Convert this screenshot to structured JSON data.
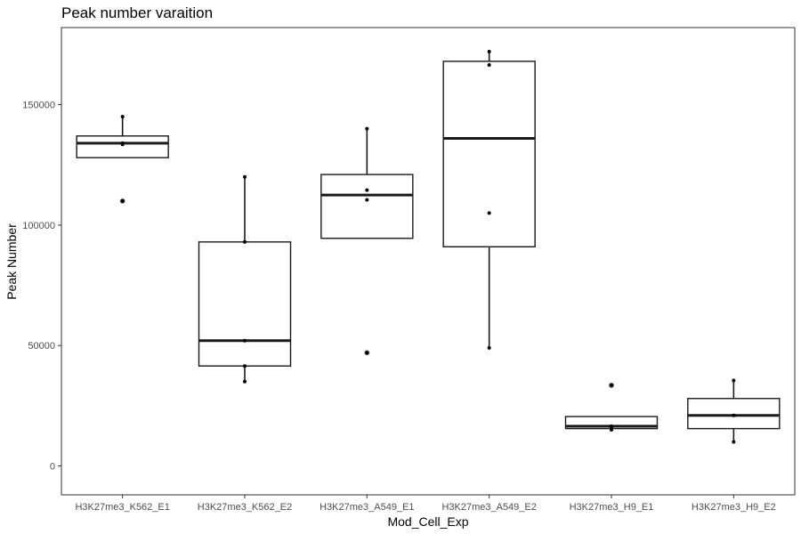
{
  "chart_data": {
    "type": "boxplot",
    "title": "Peak number varaition",
    "xlabel": "Mod_Cell_Exp",
    "ylabel": "Peak Number",
    "ylim": [
      -12000,
      182000
    ],
    "yticks": [
      0,
      50000,
      100000,
      150000
    ],
    "grid": false,
    "categories": [
      "H3K27me3_K562_E1",
      "H3K27me3_K562_E2",
      "H3K27me3_A549_E1",
      "H3K27me3_A549_E2",
      "H3K27me3_H9_E1",
      "H3K27me3_H9_E2"
    ],
    "boxes": [
      {
        "q1": 128000,
        "median": 134000,
        "q3": 137000,
        "whisker_low": 128000,
        "whisker_high": 145000
      },
      {
        "q1": 41500,
        "median": 52000,
        "q3": 93000,
        "whisker_low": 35000,
        "whisker_high": 120000
      },
      {
        "q1": 94500,
        "median": 112500,
        "q3": 121000,
        "whisker_low": 94500,
        "whisker_high": 140000
      },
      {
        "q1": 91000,
        "median": 136000,
        "q3": 168000,
        "whisker_low": 49000,
        "whisker_high": 172000
      },
      {
        "q1": 15500,
        "median": 16500,
        "q3": 20500,
        "whisker_low": 15000,
        "whisker_high": 20500
      },
      {
        "q1": 15500,
        "median": 21000,
        "q3": 28000,
        "whisker_low": 10000,
        "whisker_high": 35500
      }
    ],
    "outliers": [
      {
        "category": "H3K27me3_K562_E1",
        "value": 110000
      },
      {
        "category": "H3K27me3_A549_E1",
        "value": 47000
      },
      {
        "category": "H3K27me3_H9_E1",
        "value": 33500
      }
    ],
    "points": [
      {
        "category": "H3K27me3_K562_E1",
        "value": 145000
      },
      {
        "category": "H3K27me3_K562_E1",
        "value": 134000
      },
      {
        "category": "H3K27me3_K562_E1",
        "value": 133500
      },
      {
        "category": "H3K27me3_K562_E1",
        "value": 110000
      },
      {
        "category": "H3K27me3_K562_E2",
        "value": 120000
      },
      {
        "category": "H3K27me3_K562_E2",
        "value": 93000
      },
      {
        "category": "H3K27me3_K562_E2",
        "value": 52000
      },
      {
        "category": "H3K27me3_K562_E2",
        "value": 41500
      },
      {
        "category": "H3K27me3_K562_E2",
        "value": 35000
      },
      {
        "category": "H3K27me3_A549_E1",
        "value": 140000
      },
      {
        "category": "H3K27me3_A549_E1",
        "value": 114500
      },
      {
        "category": "H3K27me3_A549_E1",
        "value": 110500
      },
      {
        "category": "H3K27me3_A549_E1",
        "value": 47000
      },
      {
        "category": "H3K27me3_A549_E2",
        "value": 172000
      },
      {
        "category": "H3K27me3_A549_E2",
        "value": 166500
      },
      {
        "category": "H3K27me3_A549_E2",
        "value": 105000
      },
      {
        "category": "H3K27me3_A549_E2",
        "value": 49000
      },
      {
        "category": "H3K27me3_H9_E1",
        "value": 33500
      },
      {
        "category": "H3K27me3_H9_E1",
        "value": 16500
      },
      {
        "category": "H3K27me3_H9_E1",
        "value": 16000
      },
      {
        "category": "H3K27me3_H9_E1",
        "value": 15000
      },
      {
        "category": "H3K27me3_H9_E2",
        "value": 35500
      },
      {
        "category": "H3K27me3_H9_E2",
        "value": 21000
      },
      {
        "category": "H3K27me3_H9_E2",
        "value": 10000
      }
    ]
  }
}
